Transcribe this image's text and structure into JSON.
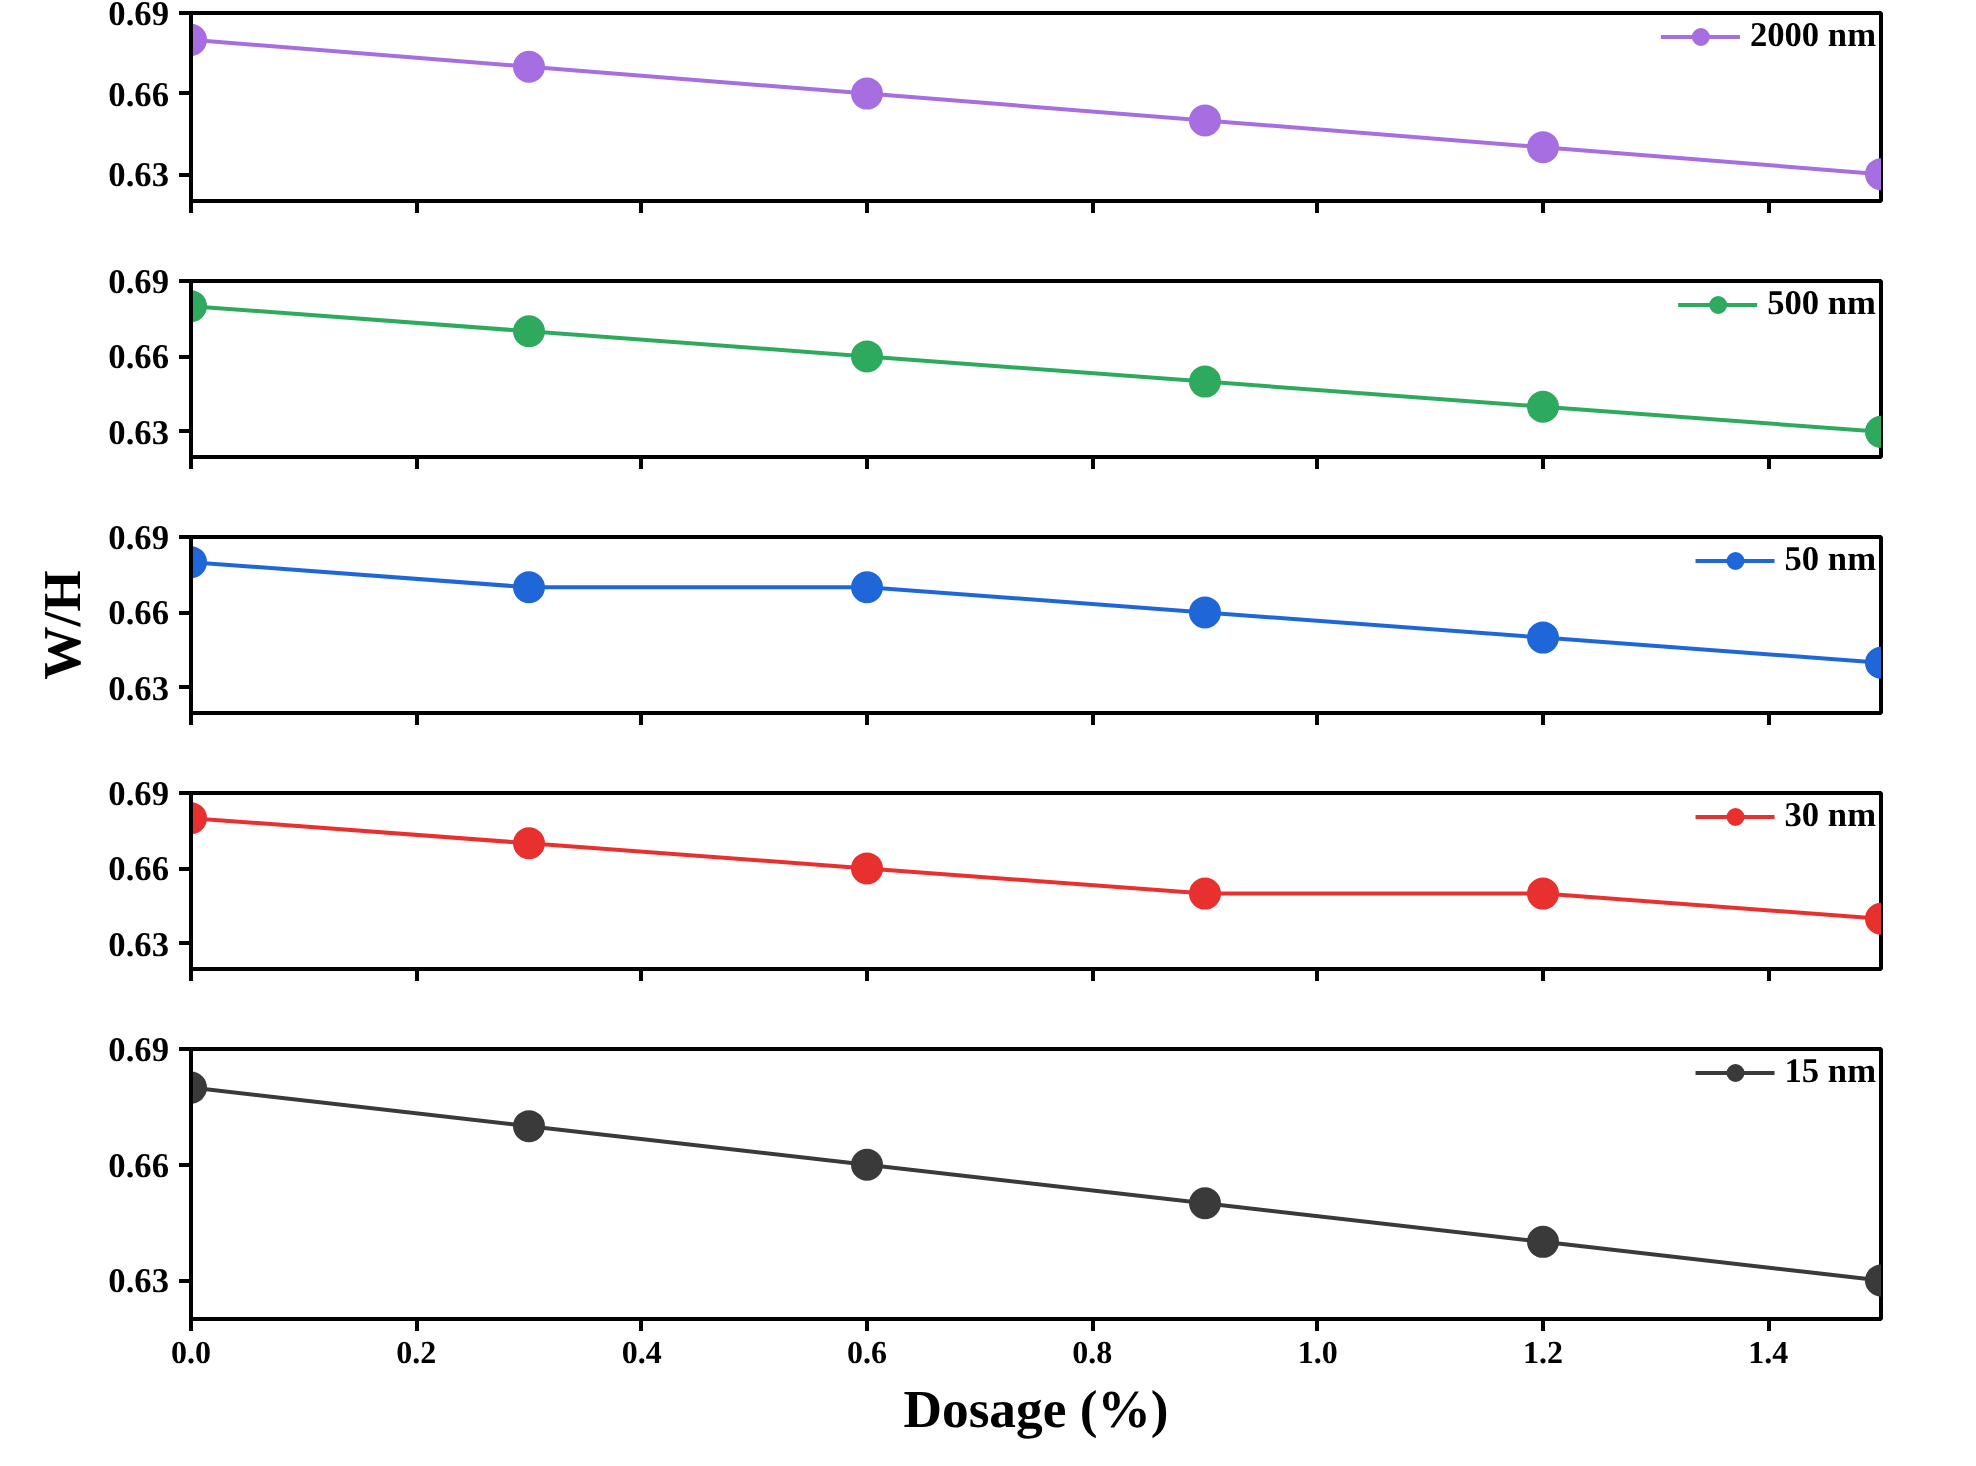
{
  "chart_data": [
    {
      "type": "line",
      "x": [
        0,
        0.3,
        0.6,
        0.9,
        1.2,
        1.5
      ],
      "series": [
        {
          "name": "2000 nm",
          "color": "#a66ee0",
          "values": [
            0.68,
            0.67,
            0.66,
            0.65,
            0.64,
            0.63
          ]
        }
      ],
      "xlim": [
        0,
        1.5
      ],
      "ylim": [
        0.62,
        0.69
      ],
      "yticks": [
        0.63,
        0.66,
        0.69
      ],
      "xticks": [
        0,
        0.2,
        0.4,
        0.6,
        0.8,
        1.0,
        1.2,
        1.4
      ],
      "tick_labels": "y",
      "legend": "top right",
      "marker": "circle",
      "grid": false
    },
    {
      "type": "line",
      "x": [
        0,
        0.3,
        0.6,
        0.9,
        1.2,
        1.5
      ],
      "series": [
        {
          "name": "500 nm",
          "color": "#2eaa5e",
          "values": [
            0.68,
            0.67,
            0.66,
            0.65,
            0.64,
            0.63
          ]
        }
      ],
      "xlim": [
        0,
        1.5
      ],
      "ylim": [
        0.62,
        0.69
      ],
      "yticks": [
        0.63,
        0.66,
        0.69
      ],
      "xticks": [
        0,
        0.2,
        0.4,
        0.6,
        0.8,
        1.0,
        1.2,
        1.4
      ],
      "tick_labels": "y",
      "legend": "top right",
      "marker": "circle",
      "grid": false
    },
    {
      "type": "line",
      "ylabel": "W/H",
      "x": [
        0,
        0.3,
        0.6,
        0.9,
        1.2,
        1.5
      ],
      "series": [
        {
          "name": "50 nm",
          "color": "#1f66d9",
          "values": [
            0.68,
            0.67,
            0.67,
            0.66,
            0.65,
            0.64
          ]
        }
      ],
      "xlim": [
        0,
        1.5
      ],
      "ylim": [
        0.62,
        0.69
      ],
      "yticks": [
        0.63,
        0.66,
        0.69
      ],
      "xticks": [
        0,
        0.2,
        0.4,
        0.6,
        0.8,
        1.0,
        1.2,
        1.4
      ],
      "tick_labels": "y",
      "legend": "top right",
      "marker": "circle",
      "grid": false
    },
    {
      "type": "line",
      "x": [
        0,
        0.3,
        0.6,
        0.9,
        1.2,
        1.5
      ],
      "series": [
        {
          "name": "30 nm",
          "color": "#e8302f",
          "values": [
            0.68,
            0.67,
            0.66,
            0.65,
            0.65,
            0.64
          ]
        }
      ],
      "xlim": [
        0,
        1.5
      ],
      "ylim": [
        0.62,
        0.69
      ],
      "yticks": [
        0.63,
        0.66,
        0.69
      ],
      "xticks": [
        0,
        0.2,
        0.4,
        0.6,
        0.8,
        1.0,
        1.2,
        1.4
      ],
      "tick_labels": "y",
      "legend": "top right",
      "marker": "circle",
      "grid": false
    },
    {
      "type": "line",
      "xlabel": "Dosage (%)",
      "x": [
        0,
        0.3,
        0.6,
        0.9,
        1.2,
        1.5
      ],
      "series": [
        {
          "name": "15 nm",
          "color": "#3a3a3a",
          "values": [
            0.68,
            0.67,
            0.66,
            0.65,
            0.64,
            0.63
          ]
        }
      ],
      "xlim": [
        0,
        1.5
      ],
      "ylim": [
        0.62,
        0.69
      ],
      "yticks": [
        0.63,
        0.66,
        0.69
      ],
      "xticks": [
        {
          "value": 0,
          "label": "0.0"
        },
        0.2,
        0.4,
        0.6,
        0.8,
        {
          "value": 1.0,
          "label": "1.0"
        },
        1.2,
        1.4
      ],
      "legend": "top right",
      "marker": "circle",
      "grid": false
    }
  ]
}
